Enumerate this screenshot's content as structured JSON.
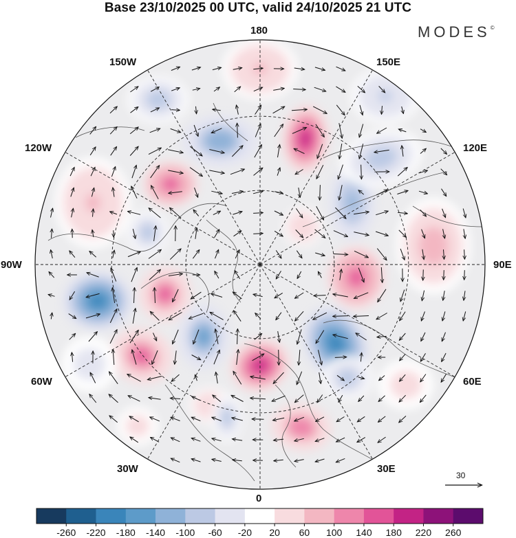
{
  "title": "Base 23/10/2025 00 UTC, valid 24/10/2025 21 UTC",
  "brand": "MODES",
  "brand_mark": "©",
  "longitude_labels": {
    "lon_180": "180",
    "lon_150W": "150W",
    "lon_150E": "150E",
    "lon_120W": "120W",
    "lon_120E": "120E",
    "lon_90W": "90W",
    "lon_90E": "90E",
    "lon_60W": "60W",
    "lon_60E": "60E",
    "lon_30W": "30W",
    "lon_30E": "30E",
    "lon_0": "0"
  },
  "reference_vector": {
    "label": "30",
    "value": 30
  },
  "colorbar": {
    "ticks": [
      "-260",
      "-220",
      "-180",
      "-140",
      "-100",
      "-60",
      "-20",
      "20",
      "60",
      "100",
      "140",
      "180",
      "220",
      "260"
    ],
    "colors": [
      "#173a5e",
      "#1f5f8f",
      "#3a85ba",
      "#5d9bc9",
      "#8fb2d8",
      "#bcc9e4",
      "#e3e4f1",
      "#ffffff",
      "#f8dcdf",
      "#f3b7c2",
      "#ee86ab",
      "#e25498",
      "#c32385",
      "#8d1279",
      "#5c0c6d"
    ]
  },
  "anomaly_features": [
    {
      "sign": "positive",
      "value": 240
    },
    {
      "sign": "positive",
      "value": 220
    },
    {
      "sign": "positive",
      "value": 200
    },
    {
      "sign": "positive",
      "value": 190
    },
    {
      "sign": "positive",
      "value": 180
    },
    {
      "sign": "positive",
      "value": 170
    },
    {
      "sign": "positive",
      "value": 160
    },
    {
      "sign": "positive",
      "value": 110
    },
    {
      "sign": "positive",
      "value": 90
    },
    {
      "sign": "positive",
      "value": 80
    },
    {
      "sign": "positive",
      "value": 70
    },
    {
      "sign": "positive",
      "value": 70
    },
    {
      "sign": "positive",
      "value": 60
    },
    {
      "sign": "positive",
      "value": 60
    },
    {
      "sign": "negative",
      "value": -240
    },
    {
      "sign": "negative",
      "value": -220
    },
    {
      "sign": "negative",
      "value": -180
    },
    {
      "sign": "negative",
      "value": -160
    },
    {
      "sign": "negative",
      "value": -140
    },
    {
      "sign": "negative",
      "value": -120
    },
    {
      "sign": "negative",
      "value": -120
    },
    {
      "sign": "negative",
      "value": -110
    },
    {
      "sign": "negative",
      "value": -110
    },
    {
      "sign": "negative",
      "value": -100
    },
    {
      "sign": "negative",
      "value": -90
    },
    {
      "sign": "negative",
      "value": -60
    }
  ],
  "colors": {
    "background": "#ffffff",
    "map_background": "#ececee",
    "coast": "#555555",
    "grid": "#222222",
    "arrow": "#111111"
  }
}
